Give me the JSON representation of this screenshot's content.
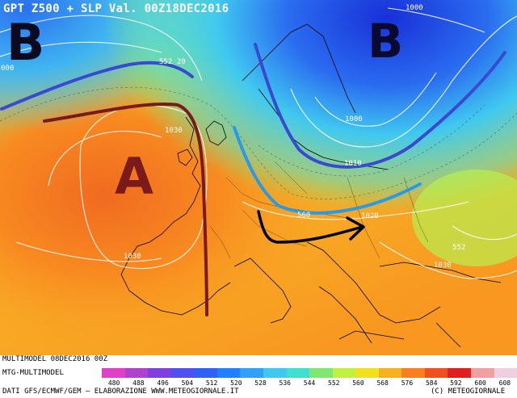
{
  "header": {
    "title": "GPT Z500 + SLP Val. 00Z18DEC2016"
  },
  "labels": {
    "high": "A",
    "low_west": "B",
    "low_east": "B"
  },
  "isobars": [
    {
      "text": "1000",
      "key": "iso_1000_top"
    },
    {
      "text": "000",
      "key": "iso_000_left"
    },
    {
      "text": "552",
      "key": "iso_552_a"
    },
    {
      "text": "20",
      "key": "iso_20"
    },
    {
      "text": "1030",
      "key": "iso_1030_a"
    },
    {
      "text": "1000",
      "key": "iso_1000_mid"
    },
    {
      "text": "1010",
      "key": "iso_1010"
    },
    {
      "text": "560",
      "key": "iso_560"
    },
    {
      "text": "1020",
      "key": "iso_1020"
    },
    {
      "text": "1030",
      "key": "iso_1030_b"
    },
    {
      "text": "552",
      "key": "iso_552_b"
    },
    {
      "text": "1030",
      "key": "iso_1030_c"
    }
  ],
  "footer": {
    "run": "MULTIMODEL 08DEC2016 00Z",
    "model": "MTG-MULTIMODEL",
    "credits": "DATI GFS/ECMWF/GEM – ELABORAZIONE WWW.METEOGIORNALE.IT",
    "copyright": "(C) METEOGIORNALE"
  },
  "scale": {
    "ticks": [
      "480",
      "488",
      "496",
      "504",
      "512",
      "520",
      "528",
      "536",
      "544",
      "552",
      "560",
      "568",
      "576",
      "584",
      "592",
      "600",
      "608"
    ],
    "colors": [
      "#e040c8",
      "#b040d0",
      "#8040e0",
      "#5050f0",
      "#3060f8",
      "#2080ff",
      "#30a0f8",
      "#40c8f0",
      "#40e0d0",
      "#80e870",
      "#c0f040",
      "#f0e020",
      "#f8b020",
      "#f88020",
      "#f05020",
      "#e02020",
      "#f0a0a0",
      "#f0d0e0"
    ]
  }
}
